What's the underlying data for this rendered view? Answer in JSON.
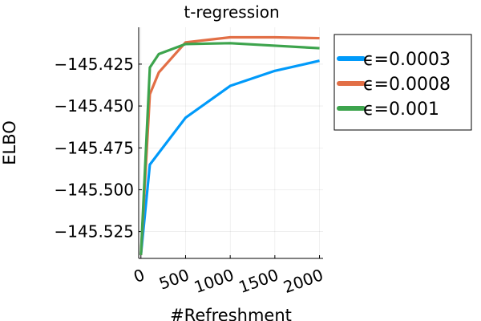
{
  "chart_data": {
    "type": "line",
    "title": "t-regression",
    "xlabel": "#Refreshment",
    "ylabel": "ELBO",
    "xlim": [
      -25,
      2040
    ],
    "ylim": [
      -145.541,
      -145.403
    ],
    "grid": true,
    "legend_position": "right",
    "x_ticks": [
      0,
      500,
      1000,
      1500,
      2000
    ],
    "x_tick_labels": [
      "0",
      "500",
      "1000",
      "1500",
      "2000"
    ],
    "y_ticks": [
      -145.425,
      -145.45,
      -145.475,
      -145.5,
      -145.525
    ],
    "y_tick_labels": [
      "−145.425",
      "−145.450",
      "−145.475",
      "−145.500",
      "−145.525"
    ],
    "series": [
      {
        "name": "ϵ=0.0003",
        "color": "#009AFA",
        "x": [
          0,
          100,
          200,
          500,
          1000,
          1500,
          2000
        ],
        "y": [
          -145.539,
          -145.485,
          -145.478,
          -145.457,
          -145.438,
          -145.429,
          -145.423
        ]
      },
      {
        "name": "ϵ=0.0008",
        "color": "#E26F46",
        "x": [
          0,
          100,
          200,
          500,
          1000,
          1500,
          2000
        ],
        "y": [
          -145.539,
          -145.443,
          -145.43,
          -145.412,
          -145.409,
          -145.409,
          -145.4095
        ]
      },
      {
        "name": "ϵ=0.001",
        "color": "#3DA44D",
        "x": [
          0,
          100,
          200,
          500,
          1000,
          1500,
          2000
        ],
        "y": [
          -145.539,
          -145.427,
          -145.419,
          -145.413,
          -145.4125,
          -145.414,
          -145.4155
        ]
      }
    ]
  }
}
